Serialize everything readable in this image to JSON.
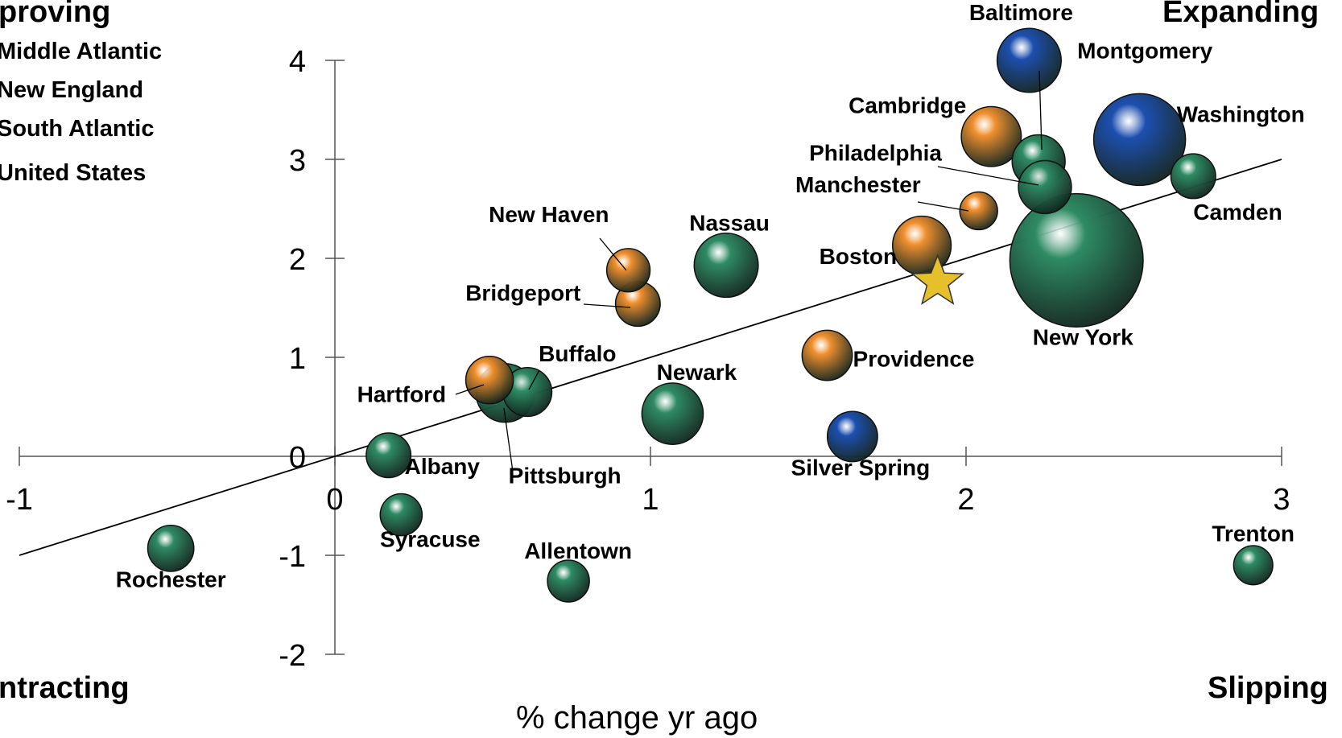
{
  "corners": {
    "top_left": "proving",
    "top_right": "Expanding",
    "bottom_left": "ntracting",
    "bottom_right": "Slipping"
  },
  "legend": [
    "Middle Atlantic",
    "New England",
    "South Atlantic",
    "United States"
  ],
  "colors": {
    "middle_atlantic": "#2e8b64",
    "new_england": "#f0902f",
    "south_atlantic": "#1d4fb0",
    "united_states": "#e6c02a"
  },
  "chart_data": {
    "type": "scatter",
    "title": "",
    "xlabel": "% change yr ago",
    "ylabel": "",
    "xlim": [
      -1,
      3
    ],
    "ylim": [
      -2,
      4
    ],
    "x_ticks": [
      -1,
      0,
      1,
      2,
      3
    ],
    "y_ticks": [
      -2,
      -1,
      0,
      1,
      2,
      3,
      4
    ],
    "x_tick_labels": [
      "-1",
      "0",
      "1",
      "2",
      "3"
    ],
    "y_tick_labels": [
      "-2",
      "-1",
      "0",
      "1",
      "2",
      "3",
      "4"
    ],
    "trendline": {
      "x": [
        -1,
        3
      ],
      "y": [
        -1.0,
        3.0
      ]
    },
    "points": [
      {
        "label": "Baltimore",
        "x": 2.2,
        "y": 4.0,
        "size": 3,
        "region": "south_atlantic"
      },
      {
        "label": "Washington",
        "x": 2.55,
        "y": 3.2,
        "size": 5,
        "region": "south_atlantic"
      },
      {
        "label": "Silver Spring",
        "x": 1.64,
        "y": 0.2,
        "size": 2,
        "region": "south_atlantic"
      },
      {
        "label": "Montgomery",
        "x": 2.23,
        "y": 2.98,
        "size": 2.2,
        "region": "middle_atlantic"
      },
      {
        "label": "Philadelphia",
        "x": 2.25,
        "y": 2.72,
        "size": 2.2,
        "region": "middle_atlantic"
      },
      {
        "label": "Camden",
        "x": 2.72,
        "y": 2.83,
        "size": 1.6,
        "region": "middle_atlantic"
      },
      {
        "label": "New York",
        "x": 2.35,
        "y": 1.98,
        "size": 8,
        "region": "middle_atlantic"
      },
      {
        "label": "Nassau",
        "x": 1.24,
        "y": 1.93,
        "size": 3,
        "region": "middle_atlantic"
      },
      {
        "label": "Newark",
        "x": 1.07,
        "y": 0.43,
        "size": 2.8,
        "region": "middle_atlantic"
      },
      {
        "label": "Pittsburgh",
        "x": 0.54,
        "y": 0.64,
        "size": 2.6,
        "region": "middle_atlantic"
      },
      {
        "label": "Buffalo",
        "x": 0.61,
        "y": 0.65,
        "size": 1.9,
        "region": "middle_atlantic"
      },
      {
        "label": "Albany",
        "x": 0.17,
        "y": 0.01,
        "size": 1.6,
        "region": "middle_atlantic"
      },
      {
        "label": "Syracuse",
        "x": 0.21,
        "y": -0.59,
        "size": 1.4,
        "region": "middle_atlantic"
      },
      {
        "label": "Allentown",
        "x": 0.74,
        "y": -1.26,
        "size": 1.4,
        "region": "middle_atlantic"
      },
      {
        "label": "Rochester",
        "x": -0.52,
        "y": -0.93,
        "size": 1.7,
        "region": "middle_atlantic"
      },
      {
        "label": "Trenton",
        "x": 2.91,
        "y": -1.1,
        "size": 1.2,
        "region": "middle_atlantic"
      },
      {
        "label": "Cambridge",
        "x": 2.08,
        "y": 3.23,
        "size": 2.7,
        "region": "new_england"
      },
      {
        "label": "Manchester",
        "x": 2.04,
        "y": 2.48,
        "size": 1.1,
        "region": "new_england"
      },
      {
        "label": "Boston",
        "x": 1.86,
        "y": 2.13,
        "size": 2.6,
        "region": "new_england"
      },
      {
        "label": "Providence",
        "x": 1.56,
        "y": 1.02,
        "size": 2.0,
        "region": "new_england"
      },
      {
        "label": "New Haven",
        "x": 0.93,
        "y": 1.88,
        "size": 1.5,
        "region": "new_england"
      },
      {
        "label": "Bridgeport",
        "x": 0.96,
        "y": 1.54,
        "size": 1.6,
        "region": "new_england"
      },
      {
        "label": "Hartford",
        "x": 0.49,
        "y": 0.77,
        "size": 1.8,
        "region": "new_england"
      },
      {
        "label": "United States",
        "x": 1.91,
        "y": 1.76,
        "size": 0,
        "region": "united_states",
        "marker": "star"
      }
    ]
  }
}
